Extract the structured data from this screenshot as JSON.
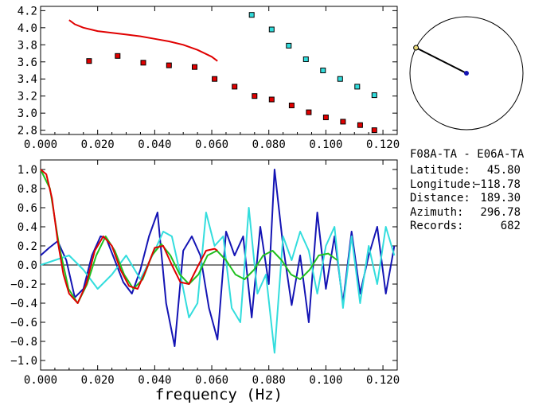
{
  "chart_data": [
    {
      "type": "scatter",
      "panel": "phase-velocity",
      "xlim": [
        0.0,
        0.125
      ],
      "ylim": [
        2.75,
        4.25
      ],
      "xticks": [
        "0.000",
        "0.020",
        "0.040",
        "0.060",
        "0.080",
        "0.100",
        "0.120"
      ],
      "yticks": [
        "2.8",
        "3.0",
        "3.2",
        "3.4",
        "3.6",
        "3.8",
        "4.0",
        "4.2"
      ],
      "series": [
        {
          "kind": "line",
          "color": "#e00000",
          "x": [
            0.01,
            0.012,
            0.015,
            0.02,
            0.025,
            0.03,
            0.035,
            0.04,
            0.045,
            0.05,
            0.055,
            0.06,
            0.062
          ],
          "y": [
            4.09,
            4.04,
            4.0,
            3.96,
            3.94,
            3.92,
            3.9,
            3.87,
            3.84,
            3.8,
            3.74,
            3.66,
            3.61
          ]
        },
        {
          "kind": "points",
          "color": "#e00000",
          "x": [
            0.017,
            0.027,
            0.036,
            0.045,
            0.054,
            0.061,
            0.068,
            0.075,
            0.081,
            0.088,
            0.094,
            0.1,
            0.106,
            0.112,
            0.117
          ],
          "y": [
            3.61,
            3.67,
            3.59,
            3.56,
            3.54,
            3.4,
            3.31,
            3.2,
            3.16,
            3.09,
            3.01,
            2.95,
            2.9,
            2.86,
            2.8
          ]
        },
        {
          "kind": "points",
          "color": "#33dddd",
          "x": [
            0.074,
            0.081,
            0.087,
            0.093,
            0.099,
            0.105,
            0.111,
            0.117
          ],
          "y": [
            4.15,
            3.98,
            3.79,
            3.63,
            3.5,
            3.4,
            3.31,
            3.21
          ]
        }
      ]
    },
    {
      "type": "line",
      "panel": "correlation",
      "xlim": [
        0.0,
        0.125
      ],
      "ylim": [
        -1.1,
        1.1
      ],
      "xticks": [
        "0.000",
        "0.020",
        "0.040",
        "0.060",
        "0.080",
        "0.100",
        "0.120"
      ],
      "yticks": [
        "1.0",
        "0.8",
        "0.6",
        "0.4",
        "0.2",
        "0.0",
        "-0.2",
        "-0.4",
        "-0.6",
        "-0.8",
        "-1.0"
      ],
      "xlabel": "frequency (Hz)",
      "series": [
        {
          "color": "#1414b4",
          "x": [
            0.0,
            0.003,
            0.006,
            0.009,
            0.012,
            0.015,
            0.018,
            0.021,
            0.023,
            0.026,
            0.029,
            0.032,
            0.035,
            0.038,
            0.041,
            0.044,
            0.047,
            0.05,
            0.053,
            0.056,
            0.059,
            0.062,
            0.065,
            0.068,
            0.071,
            0.074,
            0.077,
            0.08,
            0.082,
            0.085,
            0.088,
            0.091,
            0.094,
            0.097,
            0.1,
            0.103,
            0.106,
            0.109,
            0.112,
            0.115,
            0.118,
            0.121,
            0.124
          ],
          "y": [
            0.1,
            0.18,
            0.25,
            0.05,
            -0.34,
            -0.25,
            0.1,
            0.3,
            0.28,
            0.05,
            -0.18,
            -0.3,
            -0.05,
            0.3,
            0.55,
            -0.4,
            -0.85,
            0.15,
            0.3,
            0.1,
            -0.45,
            -0.78,
            0.35,
            0.1,
            0.3,
            -0.55,
            0.4,
            -0.2,
            1.0,
            0.2,
            -0.42,
            0.1,
            -0.6,
            0.55,
            -0.25,
            0.3,
            -0.4,
            0.35,
            -0.3,
            0.1,
            0.4,
            -0.3,
            0.2
          ]
        },
        {
          "color": "#33dddd",
          "x": [
            0.0,
            0.005,
            0.01,
            0.015,
            0.02,
            0.025,
            0.03,
            0.035,
            0.04,
            0.043,
            0.046,
            0.049,
            0.052,
            0.055,
            0.058,
            0.061,
            0.064,
            0.067,
            0.07,
            0.073,
            0.076,
            0.079,
            0.082,
            0.085,
            0.088,
            0.091,
            0.094,
            0.097,
            0.1,
            0.103,
            0.106,
            0.109,
            0.112,
            0.115,
            0.118,
            0.121,
            0.124
          ],
          "y": [
            0.0,
            0.05,
            0.1,
            -0.05,
            -0.25,
            -0.1,
            0.1,
            -0.15,
            0.15,
            0.35,
            0.3,
            -0.1,
            -0.55,
            -0.4,
            0.55,
            0.2,
            0.3,
            -0.45,
            -0.6,
            0.6,
            -0.3,
            -0.1,
            -0.92,
            0.3,
            0.05,
            0.35,
            0.15,
            -0.3,
            0.2,
            0.4,
            -0.45,
            0.3,
            -0.4,
            0.2,
            -0.2,
            0.4,
            0.1
          ]
        },
        {
          "color": "#20c020",
          "x": [
            0.0,
            0.0033,
            0.0065,
            0.0098,
            0.013,
            0.0163,
            0.0195,
            0.0228,
            0.026,
            0.0293,
            0.0325,
            0.0358,
            0.039,
            0.0423,
            0.0455,
            0.0488,
            0.052,
            0.0553,
            0.0585,
            0.0618,
            0.065,
            0.0683,
            0.0715,
            0.0748,
            0.078,
            0.0813,
            0.0845,
            0.0878,
            0.091,
            0.0943,
            0.0975,
            0.1008,
            0.104
          ],
          "y": [
            1.0,
            0.8,
            0.2,
            -0.25,
            -0.4,
            -0.2,
            0.1,
            0.3,
            0.15,
            -0.1,
            -0.25,
            -0.15,
            0.1,
            0.22,
            0.1,
            -0.1,
            -0.2,
            -0.1,
            0.1,
            0.15,
            0.05,
            -0.1,
            -0.15,
            -0.05,
            0.1,
            0.15,
            0.05,
            -0.1,
            -0.15,
            -0.05,
            0.1,
            0.12,
            0.05
          ]
        },
        {
          "color": "#e00000",
          "x": [
            0.0,
            0.002,
            0.004,
            0.006,
            0.008,
            0.01,
            0.013,
            0.016,
            0.019,
            0.022,
            0.025,
            0.028,
            0.031,
            0.034,
            0.037,
            0.04,
            0.043,
            0.046,
            0.049,
            0.052,
            0.055,
            0.058,
            0.061,
            0.062
          ],
          "y": [
            1.0,
            0.95,
            0.7,
            0.25,
            -0.1,
            -0.3,
            -0.4,
            -0.2,
            0.15,
            0.3,
            0.2,
            -0.05,
            -0.22,
            -0.25,
            -0.05,
            0.18,
            0.2,
            0.0,
            -0.18,
            -0.2,
            -0.02,
            0.15,
            0.17,
            0.15
          ]
        }
      ]
    }
  ],
  "map": {
    "center_color": "#1414b4",
    "station_color": "#e8d87a",
    "azimuth_deg": 296.78
  },
  "info": {
    "station_pair": "F08A-TA - E06A-TA",
    "latitude_label": "Latitude:",
    "latitude_value": "45.80",
    "longitude_label": "Longitude:",
    "longitude_value": "-118.78",
    "distance_label": "Distance:",
    "distance_value": "189.30",
    "azimuth_label": "Azimuth:",
    "azimuth_value": "296.78",
    "records_label": "Records:",
    "records_value": "682"
  }
}
